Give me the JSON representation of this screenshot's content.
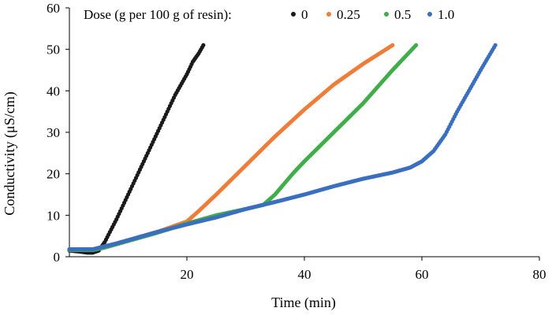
{
  "chart_data": {
    "type": "scatter",
    "xlabel": "Time (min)",
    "ylabel": "Conductivity (μS/cm)",
    "xlim": [
      0,
      80
    ],
    "ylim": [
      0,
      60
    ],
    "xticks": [
      "20",
      "40",
      "60",
      "80"
    ],
    "yticks": [
      "0",
      "10",
      "20",
      "30",
      "40",
      "50",
      "60"
    ],
    "grid": false,
    "legend": {
      "title": "Dose (g per 100 g of resin):",
      "placement": "top-center",
      "entries": [
        "0",
        "0.25",
        "0.5",
        "1.0"
      ]
    },
    "series": [
      {
        "name": "0",
        "color": "#1a1a1a",
        "x": [
          0,
          2,
          3,
          4,
          5,
          6,
          8,
          10,
          12,
          14,
          16,
          18,
          20,
          21,
          22,
          22.8
        ],
        "y": [
          1.5,
          1.2,
          1.0,
          1.0,
          1.5,
          3.5,
          9,
          15,
          21,
          27,
          33,
          39,
          44,
          47,
          49,
          51
        ]
      },
      {
        "name": "0.25",
        "color": "#f07c3a",
        "x": [
          0,
          4,
          6,
          8,
          10,
          15,
          20,
          22,
          25,
          30,
          35,
          40,
          45,
          50,
          55
        ],
        "y": [
          1.8,
          1.8,
          2.5,
          3.2,
          4.0,
          6.0,
          8.5,
          11,
          15,
          22,
          29,
          35.5,
          41.5,
          46.5,
          51
        ]
      },
      {
        "name": "0.5",
        "color": "#3fae49",
        "x": [
          0,
          4,
          6,
          8,
          10,
          15,
          20,
          25,
          30,
          33,
          35,
          38,
          40,
          45,
          50,
          55,
          59
        ],
        "y": [
          1.6,
          1.6,
          2.2,
          3.0,
          3.8,
          5.8,
          8.0,
          10.0,
          11.5,
          12.5,
          15,
          20,
          23,
          30,
          37,
          45,
          51
        ]
      },
      {
        "name": "1.0",
        "color": "#3a6fc0",
        "x": [
          0,
          4,
          6,
          8,
          10,
          15,
          20,
          25,
          30,
          35,
          40,
          45,
          50,
          55,
          58,
          60,
          62,
          64,
          66,
          68,
          70,
          72.5
        ],
        "y": [
          1.8,
          1.8,
          2.5,
          3.2,
          4.0,
          6.0,
          7.8,
          9.5,
          11.5,
          13.2,
          15.0,
          17.0,
          18.8,
          20.3,
          21.5,
          23.0,
          25.5,
          29.5,
          35,
          40,
          45,
          51
        ]
      }
    ]
  }
}
